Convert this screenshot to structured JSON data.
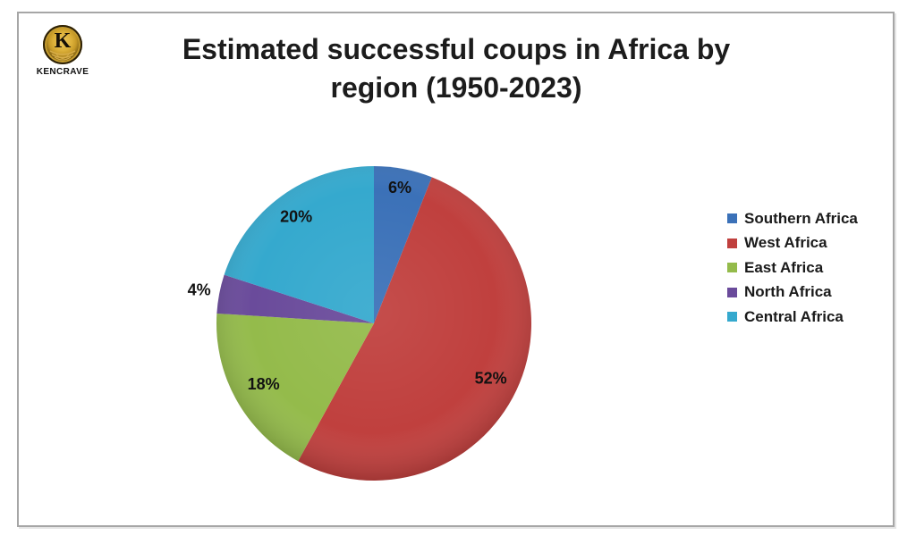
{
  "page": {
    "background": "#ffffff",
    "frame_border_color": "#a6a6a6"
  },
  "logo": {
    "letter": "K",
    "text": "KENCRAVE",
    "gold_color": "#d8ae4a"
  },
  "chart_data": {
    "type": "pie",
    "title": "Estimated successful coups in Africa by region (1950-2023)",
    "title_line1": "Estimated successful coups in Africa by",
    "title_line2": "region (1950-2023)",
    "start_angle_deg": 0,
    "direction": "clockwise",
    "legend_position": "right",
    "slices": [
      {
        "label": "Southern Africa",
        "value": 6,
        "percent_label": "6%",
        "color": "#3b71b8",
        "label_radius": 0.88
      },
      {
        "label": "West Africa",
        "value": 52,
        "percent_label": "52%",
        "color": "#c0403e",
        "label_radius": 0.82
      },
      {
        "label": "East Africa",
        "value": 18,
        "percent_label": "18%",
        "color": "#94bb4b",
        "label_radius": 0.8
      },
      {
        "label": "North Africa",
        "value": 4,
        "percent_label": "4%",
        "color": "#6a4b9b",
        "label_radius": 1.13
      },
      {
        "label": "Central Africa",
        "value": 20,
        "percent_label": "20%",
        "color": "#35a9ce",
        "label_radius": 0.84
      }
    ]
  }
}
